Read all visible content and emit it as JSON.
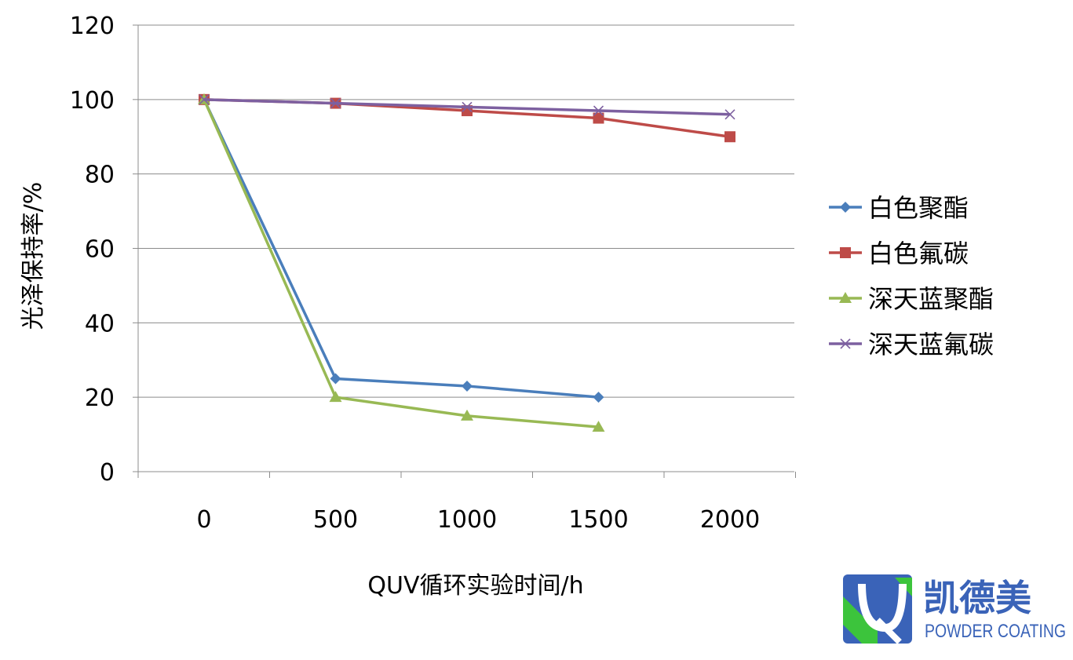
{
  "chart_data": {
    "type": "line",
    "categories": [
      "0",
      "500",
      "1000",
      "1500",
      "2000"
    ],
    "xlabel": "QUV循环实验时间/h",
    "ylabel": "光泽保持率/%",
    "ylim": [
      0,
      120
    ],
    "yticks": [
      0,
      20,
      40,
      60,
      80,
      100,
      120
    ],
    "grid": true,
    "legend_position": "right",
    "series": [
      {
        "name": "白色聚酯",
        "color": "#4a7ebb",
        "marker": "diamond",
        "values": [
          100,
          25,
          23,
          20,
          null
        ]
      },
      {
        "name": "白色氟碳",
        "color": "#be4b48",
        "marker": "square",
        "values": [
          100,
          99,
          97,
          95,
          90
        ]
      },
      {
        "name": "深天蓝聚酯",
        "color": "#98b954",
        "marker": "triangle",
        "values": [
          100,
          20,
          15,
          12,
          null
        ]
      },
      {
        "name": "深天蓝氟碳",
        "color": "#7d60a0",
        "marker": "x",
        "values": [
          100,
          99,
          98,
          97,
          96
        ]
      }
    ]
  },
  "logo": {
    "name_cn": "凯德美",
    "name_en": "POWDER COATING",
    "color_blue": "#3a63b8",
    "color_green": "#3cc43c"
  }
}
